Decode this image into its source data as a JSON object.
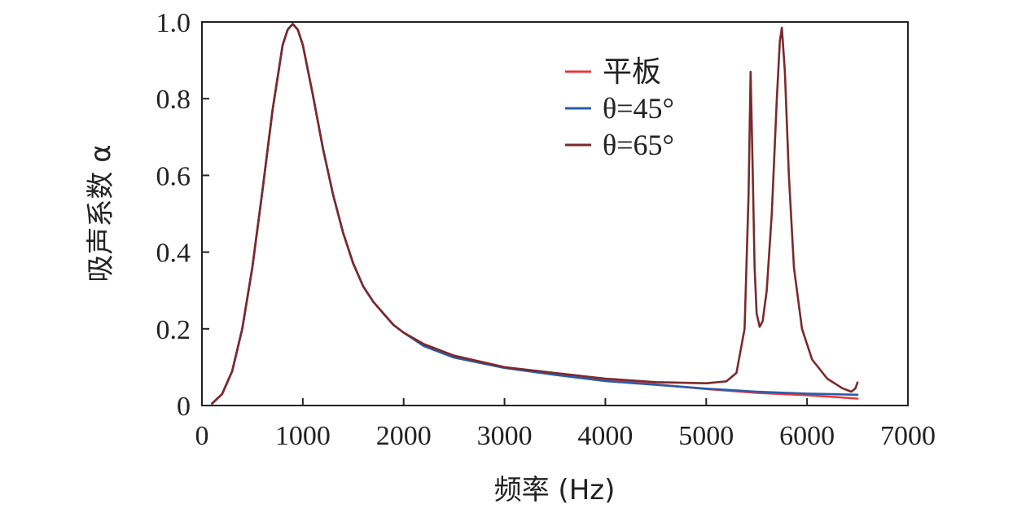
{
  "chart_data": {
    "type": "line",
    "title": "",
    "xlabel": "频率 (Hz)",
    "ylabel": "吸声系数 α",
    "xlim": [
      0,
      7000
    ],
    "ylim": [
      0,
      1.0
    ],
    "xticks": [
      0,
      1000,
      2000,
      3000,
      4000,
      5000,
      6000,
      7000
    ],
    "xtick_labels": [
      "0",
      "1000",
      "2000",
      "3000",
      "4000",
      "5000",
      "6000",
      "7000"
    ],
    "yticks": [
      0,
      0.2,
      0.4,
      0.6,
      0.8,
      1.0
    ],
    "ytick_labels": [
      "0",
      "0.2",
      "0.4",
      "0.6",
      "0.8",
      "1.0"
    ],
    "grid": false,
    "legend_position": "top-right",
    "series": [
      {
        "name": "平板",
        "color": "#e8383d",
        "x": [
          100,
          200,
          300,
          400,
          500,
          600,
          700,
          800,
          850,
          900,
          950,
          1000,
          1100,
          1200,
          1300,
          1400,
          1500,
          1600,
          1700,
          1800,
          1900,
          2000,
          2200,
          2500,
          3000,
          3500,
          4000,
          4500,
          5000,
          5500,
          6000,
          6500
        ],
        "y": [
          0.005,
          0.03,
          0.09,
          0.2,
          0.36,
          0.56,
          0.77,
          0.94,
          0.98,
          0.995,
          0.98,
          0.94,
          0.81,
          0.67,
          0.55,
          0.45,
          0.37,
          0.31,
          0.27,
          0.24,
          0.21,
          0.19,
          0.16,
          0.13,
          0.1,
          0.083,
          0.066,
          0.055,
          0.043,
          0.033,
          0.027,
          0.018
        ]
      },
      {
        "name": "θ=45°",
        "color": "#2b5ca8",
        "x": [
          100,
          200,
          300,
          400,
          500,
          600,
          700,
          800,
          850,
          900,
          950,
          1000,
          1100,
          1200,
          1300,
          1400,
          1500,
          1600,
          1700,
          1800,
          1900,
          2000,
          2200,
          2500,
          3000,
          3500,
          4000,
          4500,
          5000,
          5500,
          6000,
          6500
        ],
        "y": [
          0.005,
          0.03,
          0.09,
          0.2,
          0.36,
          0.56,
          0.77,
          0.94,
          0.98,
          0.995,
          0.98,
          0.94,
          0.81,
          0.67,
          0.55,
          0.45,
          0.37,
          0.31,
          0.27,
          0.24,
          0.21,
          0.19,
          0.155,
          0.125,
          0.098,
          0.08,
          0.064,
          0.054,
          0.044,
          0.036,
          0.031,
          0.028
        ]
      },
      {
        "name": "θ=65°",
        "color": "#7a2a2c",
        "x": [
          100,
          200,
          300,
          400,
          500,
          600,
          700,
          800,
          850,
          900,
          950,
          1000,
          1100,
          1200,
          1300,
          1400,
          1500,
          1600,
          1700,
          1800,
          1900,
          2000,
          2200,
          2500,
          3000,
          3500,
          4000,
          4500,
          5000,
          5200,
          5300,
          5380,
          5420,
          5440,
          5460,
          5480,
          5500,
          5530,
          5560,
          5600,
          5650,
          5700,
          5730,
          5750,
          5780,
          5820,
          5870,
          5950,
          6050,
          6200,
          6350,
          6440,
          6480,
          6500
        ],
        "y": [
          0.005,
          0.03,
          0.09,
          0.2,
          0.36,
          0.56,
          0.77,
          0.94,
          0.98,
          0.995,
          0.98,
          0.94,
          0.81,
          0.67,
          0.55,
          0.45,
          0.37,
          0.31,
          0.27,
          0.24,
          0.21,
          0.19,
          0.16,
          0.13,
          0.1,
          0.085,
          0.07,
          0.061,
          0.058,
          0.063,
          0.085,
          0.2,
          0.55,
          0.87,
          0.62,
          0.36,
          0.24,
          0.205,
          0.22,
          0.3,
          0.5,
          0.8,
          0.95,
          0.985,
          0.87,
          0.6,
          0.36,
          0.2,
          0.12,
          0.07,
          0.045,
          0.036,
          0.045,
          0.06
        ]
      }
    ]
  }
}
